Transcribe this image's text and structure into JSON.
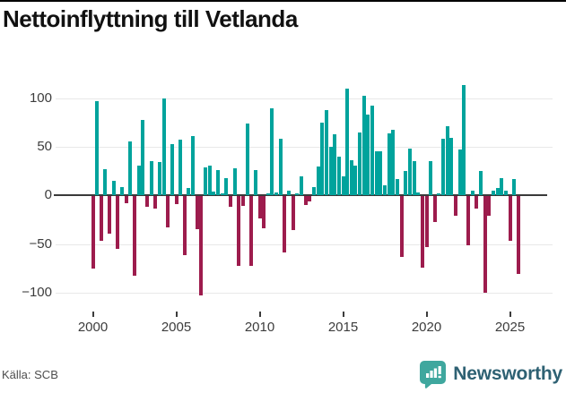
{
  "title": "Nettoinflyttning till Vetlanda",
  "source": "Källa: SCB",
  "brand": {
    "name": "Newsworthy",
    "icon": "bar-chart-speech-bubble-icon"
  },
  "colors": {
    "positive": "#00a39c",
    "negative": "#9d1c4d",
    "axis": "#3a3a3a",
    "gridline": "#e8e8e8",
    "logo_mark": "#3fa79e",
    "logo_text": "#2e6173"
  },
  "chart_data": {
    "type": "bar",
    "title": "Nettoinflyttning till Vetlanda",
    "frequency": "quarterly",
    "start_year": 2000,
    "start_quarter": 1,
    "grid": true,
    "legend": false,
    "ylim": [
      -115,
      120
    ],
    "y_ticks": [
      100,
      50,
      0,
      -50,
      -100
    ],
    "y_tick_labels": [
      "100",
      "50",
      "0",
      "−50",
      "−100"
    ],
    "x_ticks": [
      2000,
      2005,
      2010,
      2015,
      2020,
      2025
    ],
    "x_tick_labels": [
      "2000",
      "2005",
      "2010",
      "2015",
      "2020",
      "2025"
    ],
    "values": [
      -74,
      97,
      -46,
      27,
      -38,
      15,
      -54,
      9,
      -7,
      56,
      -82,
      31,
      78,
      -11,
      35,
      -13,
      34,
      100,
      -32,
      53,
      -8,
      57,
      -61,
      8,
      61,
      -34,
      -102,
      29,
      31,
      4,
      26,
      2,
      18,
      -11,
      28,
      -72,
      -10,
      74,
      -72,
      26,
      -23,
      -33,
      2,
      90,
      3,
      58,
      -58,
      5,
      -35,
      2,
      20,
      -9,
      -5,
      9,
      30,
      75,
      88,
      50,
      63,
      40,
      20,
      110,
      36,
      31,
      65,
      103,
      83,
      92,
      45,
      45,
      10,
      64,
      68,
      17,
      -62,
      25,
      48,
      35,
      3,
      -73,
      -52,
      35,
      -26,
      2,
      58,
      71,
      59,
      -20,
      47,
      114,
      -50,
      5,
      -13,
      25,
      -99,
      -20,
      5,
      8,
      18,
      5,
      -46,
      17,
      -80
    ]
  }
}
